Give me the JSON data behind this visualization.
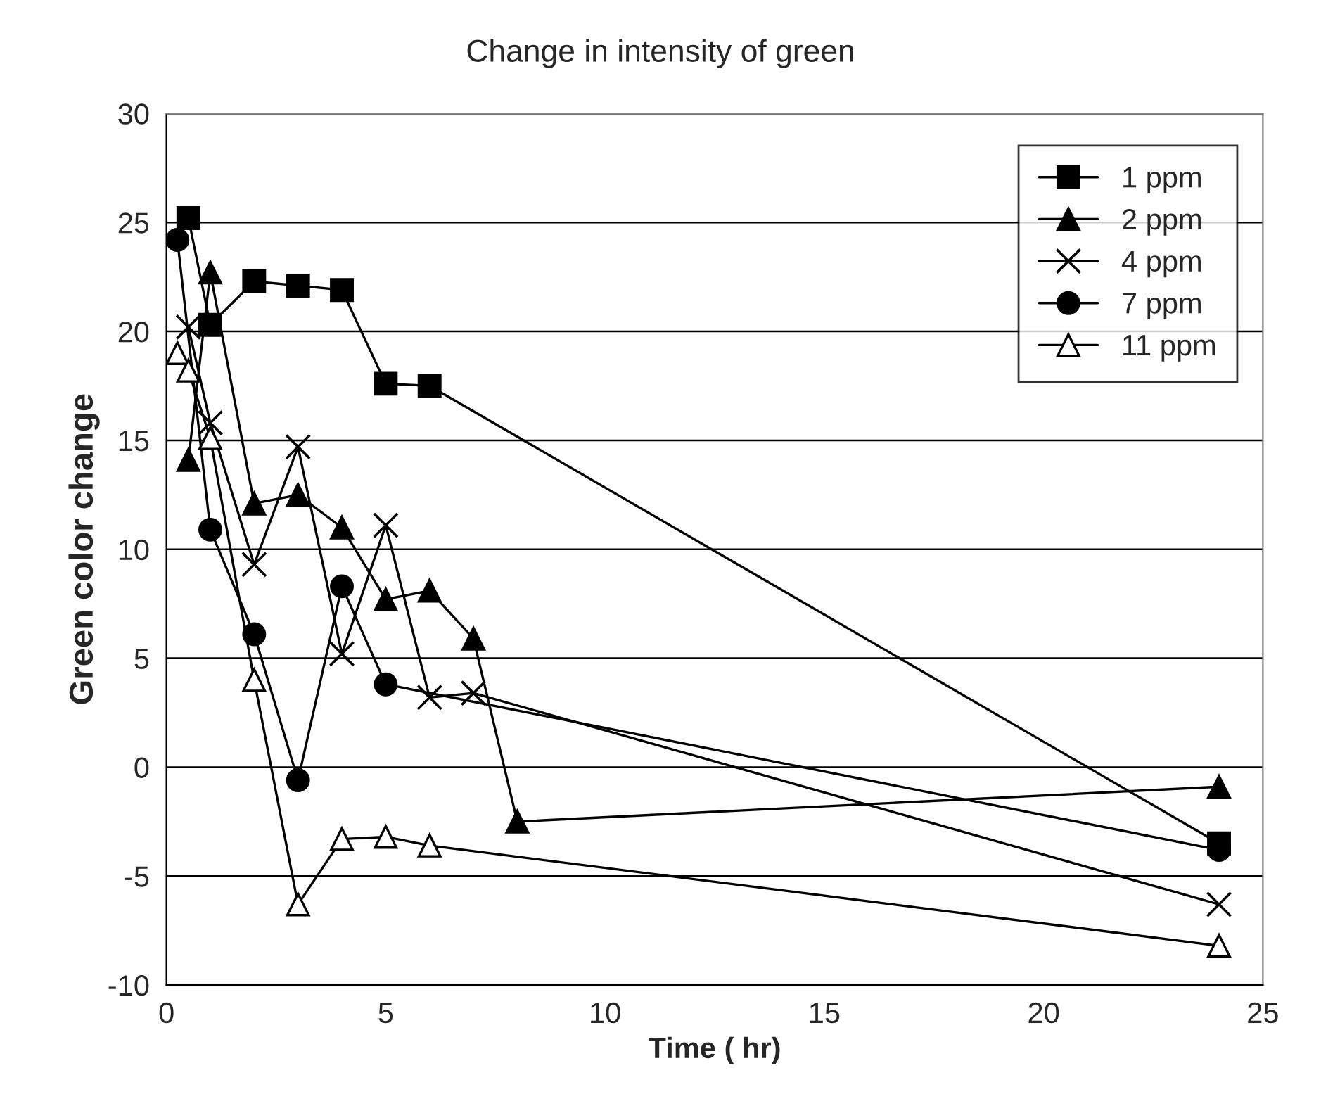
{
  "chart_data": {
    "type": "line",
    "title": "Change in intensity of green",
    "xlabel": "Time ( hr)",
    "ylabel": "Green color change",
    "xlim": [
      0,
      25
    ],
    "xticks": [
      0,
      5,
      10,
      15,
      20,
      25
    ],
    "ylim": [
      -10,
      30
    ],
    "yticks": [
      -10,
      -5,
      0,
      5,
      10,
      15,
      20,
      25,
      30
    ],
    "grid": "y",
    "legend": "top right",
    "line_style": "solid",
    "series": [
      {
        "name": "1 ppm",
        "color": "#000000",
        "marker": "square",
        "x": [
          0.5,
          1,
          2,
          3,
          4,
          5,
          6,
          24
        ],
        "values": [
          25.2,
          20.3,
          22.3,
          22.1,
          21.9,
          17.6,
          17.5,
          -3.5
        ]
      },
      {
        "name": "2 ppm",
        "color": "#000000",
        "marker": "triangle",
        "x": [
          0.5,
          1,
          2,
          3,
          4,
          5,
          6,
          7,
          8,
          24
        ],
        "values": [
          14.1,
          22.7,
          12.1,
          12.5,
          11.0,
          7.7,
          8.1,
          5.9,
          -2.5,
          -0.9
        ]
      },
      {
        "name": "4 ppm",
        "color": "#000000",
        "marker": "cross",
        "x": [
          0.5,
          1,
          2,
          3,
          4,
          5,
          6,
          7,
          24
        ],
        "values": [
          20.2,
          15.8,
          9.3,
          14.7,
          5.2,
          11.1,
          3.2,
          3.4,
          -6.3
        ]
      },
      {
        "name": "7 ppm",
        "color": "#000000",
        "marker": "circle",
        "x": [
          0.25,
          1,
          2,
          3,
          4,
          5,
          24
        ],
        "values": [
          24.2,
          10.9,
          6.1,
          -0.6,
          8.3,
          3.8,
          -3.8
        ]
      },
      {
        "name": "11 ppm",
        "color": "#000000",
        "marker": "triangle",
        "colors": [
          "#ffffff",
          "#ffffff",
          "#ffffff",
          "#ffffff",
          "#ffffff",
          "#ffffff",
          "#ffffff",
          "#ffffff",
          "#ffffff"
        ],
        "x": [
          0.25,
          0.5,
          1,
          2,
          3,
          4,
          5,
          6,
          24
        ],
        "values": [
          19.0,
          18.2,
          15.1,
          4.0,
          -6.3,
          -3.3,
          -3.2,
          -3.6,
          -8.2
        ]
      }
    ]
  }
}
